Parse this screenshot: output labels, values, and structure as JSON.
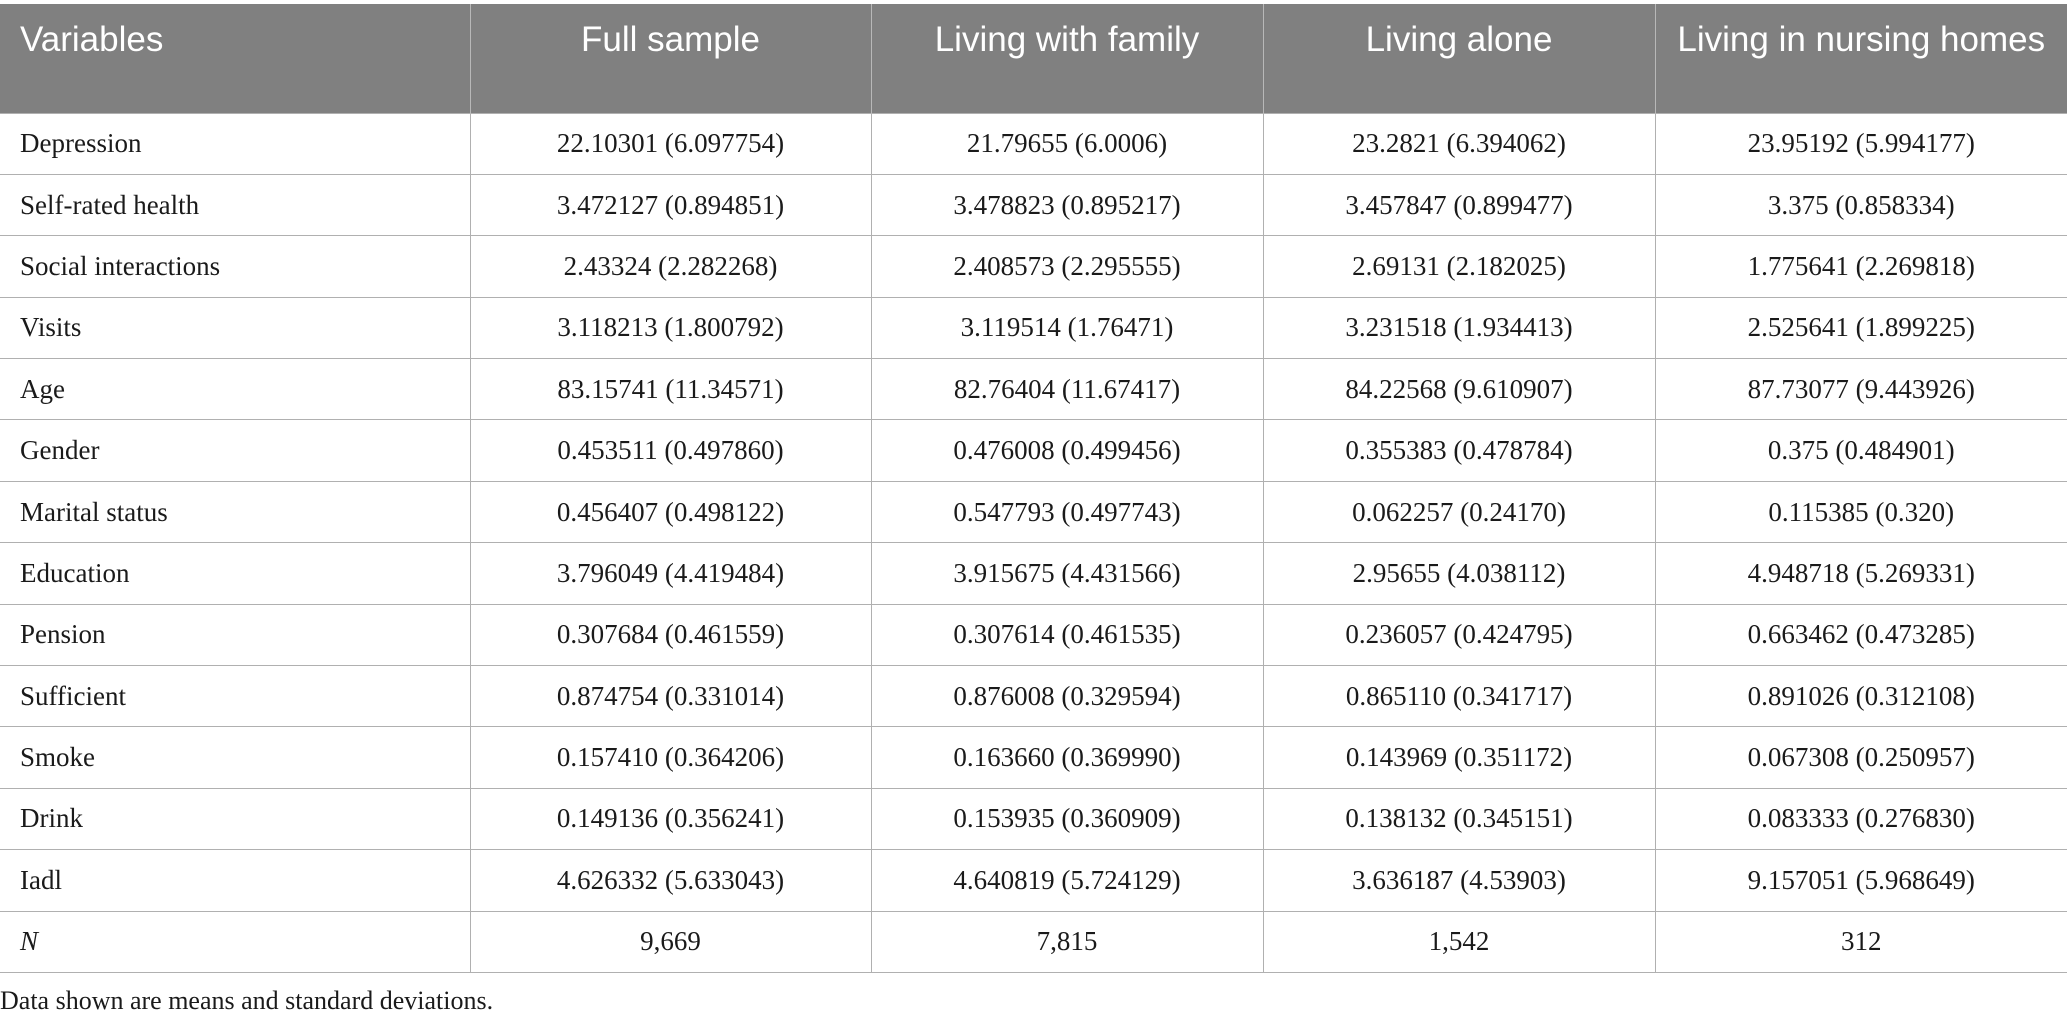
{
  "table": {
    "headers": [
      "Variables",
      "Full sample",
      "Living with family",
      "Living alone",
      "Living in nursing homes"
    ],
    "rows": [
      [
        "Depression",
        "22.10301 (6.097754)",
        "21.79655 (6.0006)",
        "23.2821 (6.394062)",
        "23.95192 (5.994177)"
      ],
      [
        "Self-rated health",
        "3.472127 (0.894851)",
        "3.478823 (0.895217)",
        "3.457847 (0.899477)",
        "3.375 (0.858334)"
      ],
      [
        "Social interactions",
        "2.43324 (2.282268)",
        "2.408573 (2.295555)",
        "2.69131 (2.182025)",
        "1.775641 (2.269818)"
      ],
      [
        "Visits",
        "3.118213 (1.800792)",
        "3.119514 (1.76471)",
        "3.231518 (1.934413)",
        "2.525641 (1.899225)"
      ],
      [
        "Age",
        "83.15741 (11.34571)",
        "82.76404 (11.67417)",
        "84.22568 (9.610907)",
        "87.73077 (9.443926)"
      ],
      [
        "Gender",
        "0.453511 (0.497860)",
        "0.476008 (0.499456)",
        "0.355383 (0.478784)",
        "0.375 (0.484901)"
      ],
      [
        "Marital status",
        "0.456407 (0.498122)",
        "0.547793 (0.497743)",
        "0.062257 (0.24170)",
        "0.115385 (0.320)"
      ],
      [
        "Education",
        "3.796049 (4.419484)",
        "3.915675 (4.431566)",
        "2.95655 (4.038112)",
        "4.948718 (5.269331)"
      ],
      [
        "Pension",
        "0.307684 (0.461559)",
        "0.307614 (0.461535)",
        "0.236057 (0.424795)",
        "0.663462 (0.473285)"
      ],
      [
        "Sufficient",
        "0.874754 (0.331014)",
        "0.876008 (0.329594)",
        "0.865110 (0.341717)",
        "0.891026 (0.312108)"
      ],
      [
        "Smoke",
        "0.157410 (0.364206)",
        "0.163660 (0.369990)",
        "0.143969 (0.351172)",
        "0.067308 (0.250957)"
      ],
      [
        "Drink",
        "0.149136 (0.356241)",
        "0.153935 (0.360909)",
        "0.138132 (0.345151)",
        "0.083333 (0.276830)"
      ],
      [
        "Iadl",
        "4.626332 (5.633043)",
        "4.640819 (5.724129)",
        "3.636187 (4.53903)",
        "9.157051 (5.968649)"
      ],
      [
        "N",
        "9,669",
        "7,815",
        "1,542",
        "312"
      ]
    ]
  },
  "note": "Data shown are means and standard deviations.",
  "colors": {
    "header_bg": "#808080",
    "header_text": "#ffffff",
    "rule": "#b0b0b0"
  }
}
